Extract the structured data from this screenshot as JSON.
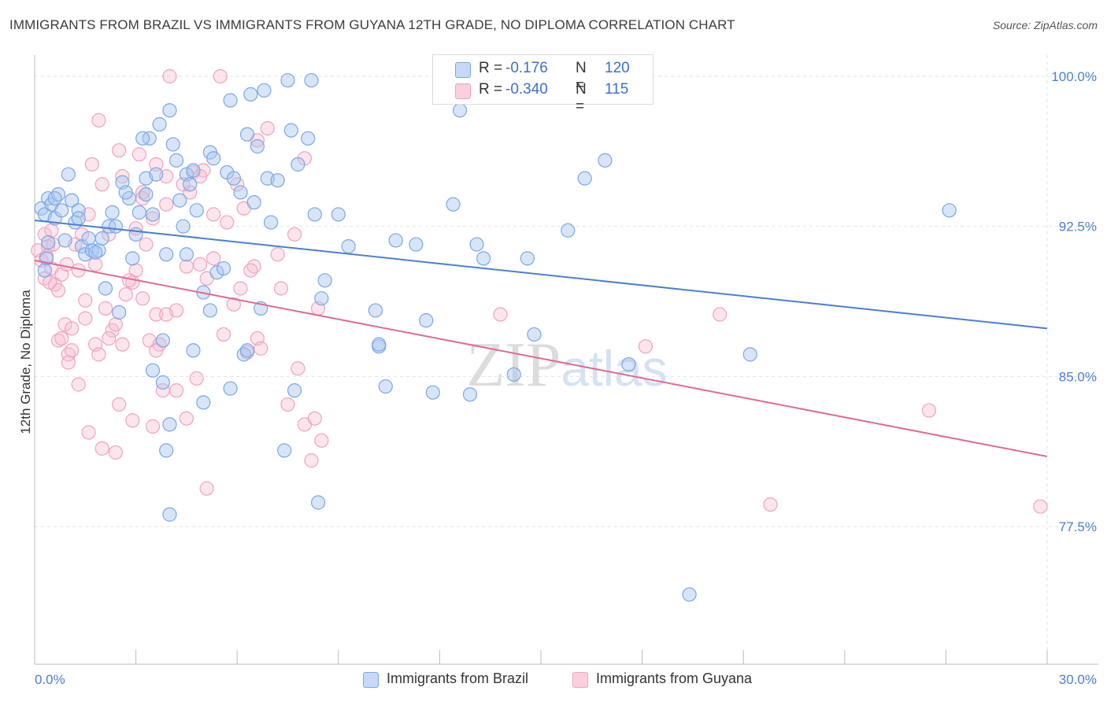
{
  "title": "IMMIGRANTS FROM BRAZIL VS IMMIGRANTS FROM GUYANA 12TH GRADE, NO DIPLOMA CORRELATION CHART",
  "source": "Source: ZipAtlas.com",
  "watermark": "ZIPatlas",
  "legend_top": {
    "rows": [
      {
        "r_label": "R =",
        "r_value": "-0.176",
        "n_label": "N =",
        "n_value": "120",
        "color": "#7aa7e8"
      },
      {
        "r_label": "R =",
        "r_value": "-0.340",
        "n_label": "N =",
        "n_value": "115",
        "color": "#f0a3bd"
      }
    ]
  },
  "legend_bottom": [
    {
      "label": "Immigrants from Brazil",
      "color": "#7aa7e8"
    },
    {
      "label": "Immigrants from Guyana",
      "color": "#f0a3bd"
    }
  ],
  "chart_data": {
    "type": "scatter",
    "title": "IMMIGRANTS FROM BRAZIL VS IMMIGRANTS FROM GUYANA 12TH GRADE, NO DIPLOMA CORRELATION CHART",
    "xlabel": "",
    "ylabel": "12th Grade, No Diploma",
    "xlim": [
      0,
      30
    ],
    "ylim": [
      70.0,
      101.0
    ],
    "x_tick_labels": [
      "0.0%",
      "30.0%"
    ],
    "y_ticks": [
      77.5,
      85.0,
      92.5,
      100.0
    ],
    "y_tick_labels": [
      "77.5%",
      "85.0%",
      "92.5%",
      "100.0%"
    ],
    "grid": true,
    "legend": "bottom",
    "colors": {
      "brazil": "#4a7fd1",
      "guyana": "#e06a93",
      "brazil_fill": "#a9c6f0",
      "guyana_fill": "#f7bdd0"
    },
    "series": [
      {
        "name": "Immigrants from Brazil",
        "trend": {
          "x": [
            0,
            30
          ],
          "y": [
            92.8,
            87.4
          ]
        },
        "points": [
          [
            0.2,
            93.4
          ],
          [
            0.3,
            93.1
          ],
          [
            0.4,
            93.9
          ],
          [
            0.5,
            93.6
          ],
          [
            0.6,
            92.9
          ],
          [
            0.7,
            94.1
          ],
          [
            0.8,
            93.3
          ],
          [
            1.0,
            95.1
          ],
          [
            1.1,
            93.8
          ],
          [
            1.3,
            93.3
          ],
          [
            1.2,
            92.7
          ],
          [
            0.9,
            91.8
          ],
          [
            1.4,
            91.5
          ],
          [
            1.5,
            91.1
          ],
          [
            1.7,
            91.3
          ],
          [
            1.6,
            91.9
          ],
          [
            1.9,
            91.3
          ],
          [
            2.0,
            91.9
          ],
          [
            2.2,
            92.5
          ],
          [
            2.4,
            92.5
          ],
          [
            2.6,
            94.7
          ],
          [
            2.8,
            93.9
          ],
          [
            3.1,
            93.2
          ],
          [
            3.3,
            94.9
          ],
          [
            3.5,
            93.1
          ],
          [
            3.6,
            95.1
          ],
          [
            3.4,
            96.9
          ],
          [
            3.7,
            97.6
          ],
          [
            3.2,
            96.9
          ],
          [
            4.0,
            98.3
          ],
          [
            4.1,
            96.6
          ],
          [
            4.2,
            95.8
          ],
          [
            4.5,
            95.1
          ],
          [
            4.6,
            94.6
          ],
          [
            5.2,
            96.2
          ],
          [
            5.3,
            95.9
          ],
          [
            5.7,
            95.2
          ],
          [
            5.9,
            94.9
          ],
          [
            6.3,
            97.1
          ],
          [
            6.6,
            96.5
          ],
          [
            6.9,
            94.9
          ],
          [
            7.2,
            94.8
          ],
          [
            7.6,
            97.3
          ],
          [
            7.8,
            95.6
          ],
          [
            8.1,
            96.9
          ],
          [
            8.3,
            93.1
          ],
          [
            6.4,
            99.1
          ],
          [
            6.8,
            99.3
          ],
          [
            7.5,
            99.8
          ],
          [
            8.2,
            99.8
          ],
          [
            5.8,
            98.8
          ],
          [
            4.8,
            93.3
          ],
          [
            4.7,
            95.3
          ],
          [
            4.3,
            93.8
          ],
          [
            3.0,
            92.1
          ],
          [
            2.9,
            90.9
          ],
          [
            4.5,
            91.1
          ],
          [
            5.0,
            89.2
          ],
          [
            5.4,
            90.2
          ],
          [
            5.6,
            90.4
          ],
          [
            5.2,
            88.3
          ],
          [
            6.7,
            88.4
          ],
          [
            8.5,
            88.9
          ],
          [
            8.6,
            89.8
          ],
          [
            9.3,
            91.5
          ],
          [
            10.1,
            88.3
          ],
          [
            10.7,
            91.8
          ],
          [
            11.3,
            91.6
          ],
          [
            11.6,
            87.8
          ],
          [
            12.4,
            93.6
          ],
          [
            13.1,
            91.6
          ],
          [
            13.3,
            90.9
          ],
          [
            12.6,
            98.3
          ],
          [
            12.8,
            99.9
          ],
          [
            14.6,
            90.9
          ],
          [
            14.8,
            87.1
          ],
          [
            15.8,
            92.3
          ],
          [
            16.3,
            94.9
          ],
          [
            16.9,
            95.8
          ],
          [
            14.2,
            85.1
          ],
          [
            10.2,
            86.5
          ],
          [
            10.4,
            84.5
          ],
          [
            11.8,
            84.2
          ],
          [
            8.4,
            78.7
          ],
          [
            7.4,
            81.3
          ],
          [
            3.9,
            81.3
          ],
          [
            4.0,
            78.1
          ],
          [
            4.7,
            86.3
          ],
          [
            3.8,
            86.8
          ],
          [
            3.5,
            85.3
          ],
          [
            3.8,
            84.7
          ],
          [
            4.0,
            82.6
          ],
          [
            5.0,
            83.7
          ],
          [
            5.8,
            84.4
          ],
          [
            6.2,
            86.1
          ],
          [
            6.3,
            86.3
          ],
          [
            7.7,
            84.3
          ],
          [
            12.9,
            84.1
          ],
          [
            17.6,
            85.6
          ],
          [
            21.2,
            86.1
          ],
          [
            19.4,
            74.1
          ],
          [
            27.1,
            93.3
          ],
          [
            2.5,
            88.2
          ],
          [
            2.1,
            89.4
          ],
          [
            1.3,
            92.9
          ],
          [
            0.6,
            93.9
          ],
          [
            0.35,
            90.9
          ],
          [
            0.3,
            90.3
          ],
          [
            0.4,
            91.7
          ],
          [
            1.8,
            91.2
          ],
          [
            2.3,
            93.2
          ],
          [
            2.7,
            94.2
          ],
          [
            3.3,
            94.1
          ],
          [
            3.9,
            91.1
          ],
          [
            4.4,
            92.5
          ],
          [
            6.1,
            94.2
          ],
          [
            6.5,
            93.7
          ],
          [
            7.0,
            92.7
          ],
          [
            9.0,
            93.1
          ],
          [
            10.2,
            86.6
          ]
        ]
      },
      {
        "name": "Immigrants from Guyana",
        "trend": {
          "x": [
            0,
            30
          ],
          "y": [
            90.8,
            81.0
          ]
        },
        "points": [
          [
            0.1,
            91.3
          ],
          [
            0.2,
            90.8
          ],
          [
            0.3,
            92.1
          ],
          [
            0.4,
            91.5
          ],
          [
            0.5,
            90.4
          ],
          [
            0.6,
            89.6
          ],
          [
            0.7,
            89.3
          ],
          [
            0.8,
            90.1
          ],
          [
            0.9,
            87.6
          ],
          [
            1.0,
            86.1
          ],
          [
            1.1,
            86.3
          ],
          [
            0.7,
            86.8
          ],
          [
            1.3,
            84.6
          ],
          [
            1.6,
            82.2
          ],
          [
            2.0,
            81.4
          ],
          [
            2.4,
            81.2
          ],
          [
            2.5,
            83.6
          ],
          [
            1.8,
            86.6
          ],
          [
            2.3,
            87.3
          ],
          [
            2.7,
            89.1
          ],
          [
            3.2,
            88.9
          ],
          [
            3.4,
            86.8
          ],
          [
            3.6,
            88.1
          ],
          [
            3.0,
            90.3
          ],
          [
            2.9,
            89.7
          ],
          [
            3.3,
            91.6
          ],
          [
            3.9,
            88.1
          ],
          [
            4.2,
            88.3
          ],
          [
            4.5,
            90.5
          ],
          [
            4.6,
            94.2
          ],
          [
            4.7,
            95.2
          ],
          [
            5.0,
            95.3
          ],
          [
            5.3,
            93.1
          ],
          [
            4.9,
            95.0
          ],
          [
            6.0,
            94.6
          ],
          [
            6.2,
            93.4
          ],
          [
            6.5,
            90.5
          ],
          [
            6.6,
            96.8
          ],
          [
            6.9,
            97.4
          ],
          [
            8.0,
            95.9
          ],
          [
            8.4,
            88.4
          ],
          [
            7.3,
            89.4
          ],
          [
            7.7,
            92.1
          ],
          [
            6.6,
            86.9
          ],
          [
            6.3,
            86.2
          ],
          [
            5.9,
            88.6
          ],
          [
            5.3,
            90.9
          ],
          [
            5.6,
            87.1
          ],
          [
            4.2,
            84.3
          ],
          [
            3.8,
            84.3
          ],
          [
            3.5,
            82.5
          ],
          [
            4.5,
            82.9
          ],
          [
            5.1,
            79.4
          ],
          [
            7.5,
            83.6
          ],
          [
            8.0,
            82.6
          ],
          [
            8.3,
            82.9
          ],
          [
            8.5,
            81.8
          ],
          [
            8.2,
            80.8
          ],
          [
            3.7,
            86.6
          ],
          [
            2.4,
            87.6
          ],
          [
            2.1,
            88.4
          ],
          [
            1.9,
            86.1
          ],
          [
            2.8,
            89.8
          ],
          [
            3.0,
            92.4
          ],
          [
            3.9,
            93.6
          ],
          [
            3.6,
            95.6
          ],
          [
            2.6,
            95.0
          ],
          [
            2.0,
            94.6
          ],
          [
            1.7,
            95.6
          ],
          [
            1.6,
            93.1
          ],
          [
            1.4,
            92.1
          ],
          [
            1.2,
            91.6
          ],
          [
            0.95,
            90.6
          ],
          [
            0.5,
            92.3
          ],
          [
            0.35,
            91.0
          ],
          [
            0.3,
            89.9
          ],
          [
            1.8,
            90.6
          ],
          [
            2.2,
            92.1
          ],
          [
            2.5,
            96.3
          ],
          [
            1.9,
            97.8
          ],
          [
            3.1,
            96.1
          ],
          [
            3.9,
            95.0
          ],
          [
            3.5,
            92.9
          ],
          [
            3.2,
            94.2
          ],
          [
            4.0,
            100.0
          ],
          [
            5.5,
            100.0
          ],
          [
            4.9,
            90.6
          ],
          [
            5.1,
            89.9
          ],
          [
            6.1,
            89.4
          ],
          [
            6.7,
            86.4
          ],
          [
            7.2,
            91.1
          ],
          [
            7.8,
            85.4
          ],
          [
            13.8,
            88.1
          ],
          [
            18.1,
            86.5
          ],
          [
            20.3,
            88.1
          ],
          [
            26.5,
            83.3
          ],
          [
            29.8,
            78.5
          ],
          [
            21.8,
            78.6
          ],
          [
            3.2,
            93.9
          ],
          [
            4.4,
            94.6
          ],
          [
            1.5,
            88.8
          ],
          [
            1.3,
            90.3
          ],
          [
            1.1,
            87.4
          ],
          [
            0.8,
            86.9
          ],
          [
            1.0,
            85.7
          ],
          [
            2.6,
            86.6
          ],
          [
            2.9,
            82.8
          ],
          [
            3.6,
            86.3
          ],
          [
            4.8,
            84.9
          ],
          [
            2.2,
            86.9
          ],
          [
            1.5,
            87.9
          ],
          [
            5.7,
            92.7
          ],
          [
            6.4,
            90.3
          ],
          [
            0.45,
            89.7
          ],
          [
            0.55,
            91.6
          ]
        ]
      }
    ]
  }
}
